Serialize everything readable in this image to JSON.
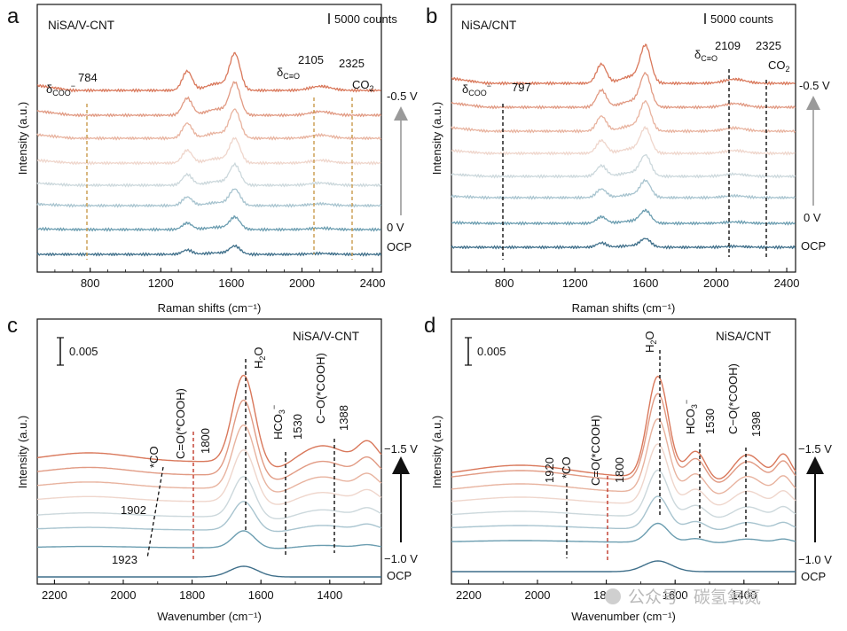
{
  "panels": [
    {
      "letter": "a",
      "title": "NiSA/V-CNT",
      "scale_bar": "5000 counts",
      "xlabel": "Raman shifts (cm⁻¹)",
      "ylabel": "Intensity (a.u.)",
      "xticks": [
        "800",
        "1200",
        "1600",
        "2000",
        "2400"
      ],
      "potential_top": "-0.5 V",
      "potential_bottom": "0 V",
      "ocp": "OCP",
      "markers": [
        {
          "name": "784",
          "group": "δCOO⁻",
          "color": "#c99a4b"
        },
        {
          "name": "2105",
          "group": "δC≡O",
          "color": "#c99a4b"
        },
        {
          "name": "2325",
          "group": "CO₂",
          "color": "#c99a4b"
        }
      ]
    },
    {
      "letter": "b",
      "title": "NiSA/CNT",
      "scale_bar": "5000 counts",
      "xlabel": "Raman shifts (cm⁻¹)",
      "ylabel": "Intensity (a.u.)",
      "xticks": [
        "800",
        "1200",
        "1600",
        "2000",
        "2400"
      ],
      "potential_top": "-0.5 V",
      "potential_bottom": "0 V",
      "ocp": "OCP",
      "markers": [
        {
          "name": "797",
          "group": "δCOO⁻",
          "color": "#111111"
        },
        {
          "name": "2109",
          "group": "δC≡O",
          "color": "#111111"
        },
        {
          "name": "2325",
          "group": "CO₂",
          "color": "#111111"
        }
      ]
    },
    {
      "letter": "c",
      "title": "NiSA/V-CNT",
      "scale_bar": "0.005",
      "xlabel": "Wavenumber (cm⁻¹)",
      "ylabel": "Intensity (a.u.)",
      "xticks": [
        "2200",
        "2000",
        "1800",
        "1600",
        "1400"
      ],
      "potential_top": "−1.5 V",
      "potential_bottom": "−1.0 V",
      "ocp": "OCP",
      "markers": [
        {
          "name": "1800",
          "group": "C=O(*COOH)",
          "color": "#c0392b"
        },
        {
          "name": "H₂O",
          "group": "H₂O",
          "color": "#111111"
        },
        {
          "name": "1530",
          "group": "HCO₃⁻",
          "color": "#111111"
        },
        {
          "name": "1388",
          "group": "C−O(*COOH)",
          "color": "#111111"
        }
      ],
      "co_labels": [
        "*CO",
        "1902",
        "1923"
      ]
    },
    {
      "letter": "d",
      "title": "NiSA/CNT",
      "scale_bar": "0.005",
      "xlabel": "Wavenumber (cm⁻¹)",
      "ylabel": "Intensity (a.u.)",
      "xticks": [
        "2200",
        "2000",
        "1800",
        "1600",
        "1400"
      ],
      "potential_top": "−1.5 V",
      "potential_bottom": "−1.0 V",
      "ocp": "OCP",
      "markers": [
        {
          "name": "1920",
          "group": "*CO",
          "color": "#111111"
        },
        {
          "name": "1800",
          "group": "C=O(*COOH)",
          "color": "#c0392b"
        },
        {
          "name": "H₂O",
          "group": "H₂O",
          "color": "#111111"
        },
        {
          "name": "1530",
          "group": "HCO₃⁻",
          "color": "#111111"
        },
        {
          "name": "1398",
          "group": "C−O(*COOH)",
          "color": "#111111"
        }
      ]
    }
  ],
  "watermark": "公众号 · 碳氢氧氮",
  "chart_data": [
    {
      "type": "line",
      "panel": "a",
      "title": "NiSA/V-CNT",
      "xlabel": "Raman shifts (cm⁻¹)",
      "ylabel": "Intensity (a.u.)",
      "xlim": [
        500,
        2450
      ],
      "x_peaks": [
        1350,
        1620
      ],
      "curve_count": 8,
      "series": [
        "OCP",
        "0 V",
        "",
        "",
        "",
        "",
        "",
        "-0.5 V"
      ],
      "marker_lines": [
        784,
        2105,
        2325
      ],
      "colors": [
        "#3f6f8a",
        "#6b9db0",
        "#a8c4cf",
        "#ccd8dc",
        "#efd6cc",
        "#e8b39f",
        "#e19a83",
        "#d9785b"
      ]
    },
    {
      "type": "line",
      "panel": "b",
      "title": "NiSA/CNT",
      "xlabel": "Raman shifts (cm⁻¹)",
      "ylabel": "Intensity (a.u.)",
      "xlim": [
        500,
        2450
      ],
      "x_peaks": [
        1350,
        1600
      ],
      "curve_count": 8,
      "series": [
        "OCP",
        "0 V",
        "",
        "",
        "",
        "",
        "",
        "-0.5 V"
      ],
      "marker_lines": [
        797,
        2109,
        2325
      ],
      "colors": [
        "#3f6f8a",
        "#6b9db0",
        "#a8c4cf",
        "#ccd8dc",
        "#efd6cc",
        "#e8b39f",
        "#e19a83",
        "#d9785b"
      ]
    },
    {
      "type": "line",
      "panel": "c",
      "title": "NiSA/V-CNT",
      "xlabel": "Wavenumber (cm⁻¹)",
      "ylabel": "Intensity (a.u.)",
      "xlim": [
        2250,
        1250
      ],
      "x_peaks": [
        1650
      ],
      "curve_count": 8,
      "series": [
        "OCP",
        "−1.0 V",
        "",
        "",
        "",
        "",
        "",
        "−1.5 V"
      ],
      "marker_lines": [
        1800,
        1650,
        1530,
        1388
      ],
      "co_band": [
        1923,
        1902
      ],
      "colors": [
        "#3f6f8a",
        "#6b9db0",
        "#a8c4cf",
        "#ccd8dc",
        "#efd6cc",
        "#e8b39f",
        "#e19a83",
        "#d9785b"
      ]
    },
    {
      "type": "line",
      "panel": "d",
      "title": "NiSA/CNT",
      "xlabel": "Wavenumber (cm⁻¹)",
      "ylabel": "Intensity (a.u.)",
      "xlim": [
        2250,
        1250
      ],
      "x_peaks": [
        1650
      ],
      "curve_count": 8,
      "series": [
        "OCP",
        "−1.0 V",
        "",
        "",
        "",
        "",
        "",
        "−1.5 V"
      ],
      "marker_lines": [
        1920,
        1800,
        1650,
        1530,
        1398
      ],
      "colors": [
        "#3f6f8a",
        "#6b9db0",
        "#a8c4cf",
        "#ccd8dc",
        "#efd6cc",
        "#e8b39f",
        "#e19a83",
        "#d9785b"
      ]
    }
  ]
}
